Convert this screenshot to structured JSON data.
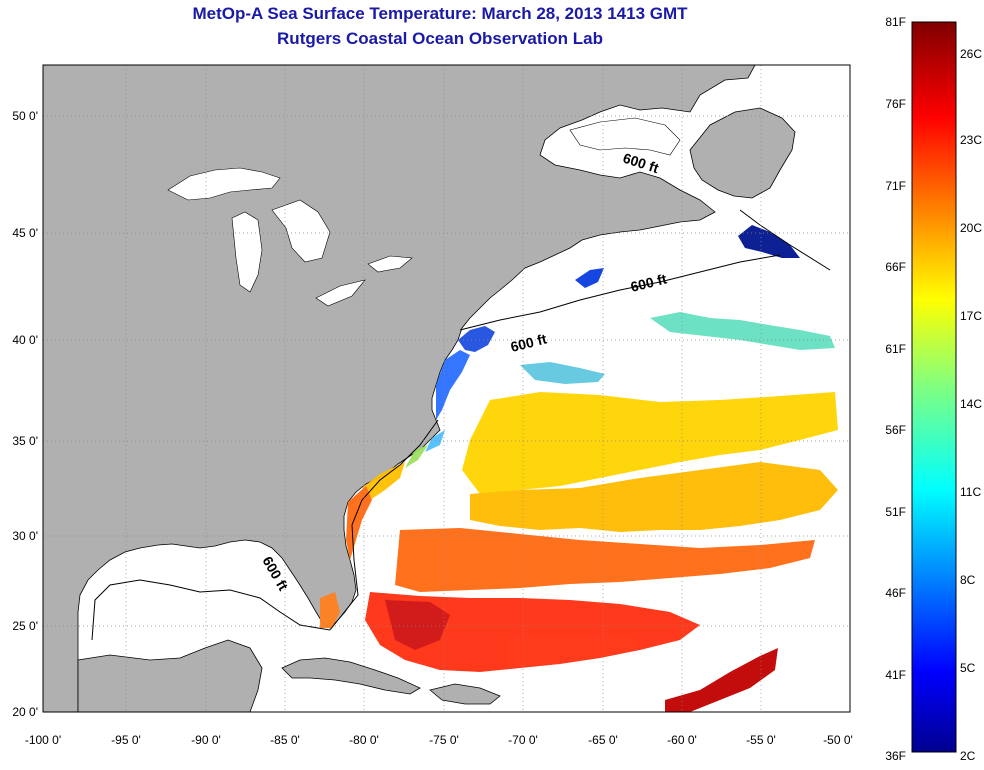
{
  "title": "MetOp-A Sea Surface Temperature:  March 28, 2013 1413 GMT",
  "subtitle": "Rutgers Coastal Ocean Observation Lab",
  "map": {
    "lon_ticks": [
      "-100 0'",
      "-95 0'",
      "-90 0'",
      "-85 0'",
      "-80 0'",
      "-75 0'",
      "-70 0'",
      "-65 0'",
      "-60 0'",
      "-55 0'",
      "-50 0'"
    ],
    "lat_ticks": [
      "50 0'",
      "45 0'",
      "40 0'",
      "35 0'",
      "30 0'",
      "25 0'",
      "20 0'"
    ],
    "contour_labels": [
      "600 ft",
      "600 ft",
      "600 ft",
      "600 ft"
    ],
    "land_color": "#b0b0b0",
    "no_data_color": "#ffffff"
  },
  "colorbar": {
    "fahrenheit_labels": [
      "81F",
      "76F",
      "71F",
      "66F",
      "61F",
      "56F",
      "51F",
      "46F",
      "41F",
      "36F"
    ],
    "celsius_labels": [
      "26C",
      "23C",
      "20C",
      "17C",
      "14C",
      "11C",
      "8C",
      "5C",
      "2C"
    ],
    "colormap": "jet"
  }
}
